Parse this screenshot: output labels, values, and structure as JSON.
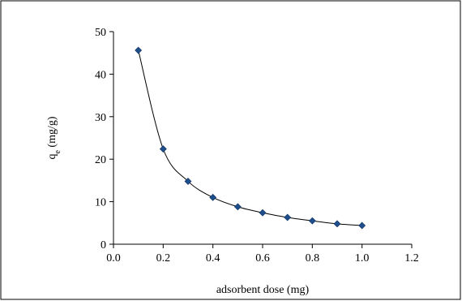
{
  "chart_data": {
    "type": "scatter",
    "title": "",
    "xlabel": "adsorbent dose (mg)",
    "ylabel_main": "q",
    "ylabel_sub": "e",
    "ylabel_unit": " (mg/g)",
    "xlim": [
      0,
      1.2
    ],
    "ylim": [
      0,
      50
    ],
    "xticks": [
      0.0,
      0.2,
      0.4,
      0.6,
      0.8,
      1.0,
      1.2
    ],
    "xtick_labels": [
      "0.0",
      "0.2",
      "0.4",
      "0.6",
      "0.8",
      "1.0",
      "1.2"
    ],
    "yticks": [
      0,
      10,
      20,
      30,
      40,
      50
    ],
    "ytick_labels": [
      "0",
      "10",
      "20",
      "30",
      "40",
      "50"
    ],
    "grid": false,
    "legend": "none",
    "marker_color": "#1f4e8c",
    "line_color": "#000000",
    "series": [
      {
        "x": [
          0.1,
          0.2,
          0.3,
          0.4,
          0.5,
          0.6,
          0.7,
          0.8,
          0.9,
          1.0
        ],
        "y": [
          45.6,
          22.4,
          14.8,
          11.0,
          8.8,
          7.4,
          6.3,
          5.5,
          4.8,
          4.4
        ]
      }
    ]
  }
}
